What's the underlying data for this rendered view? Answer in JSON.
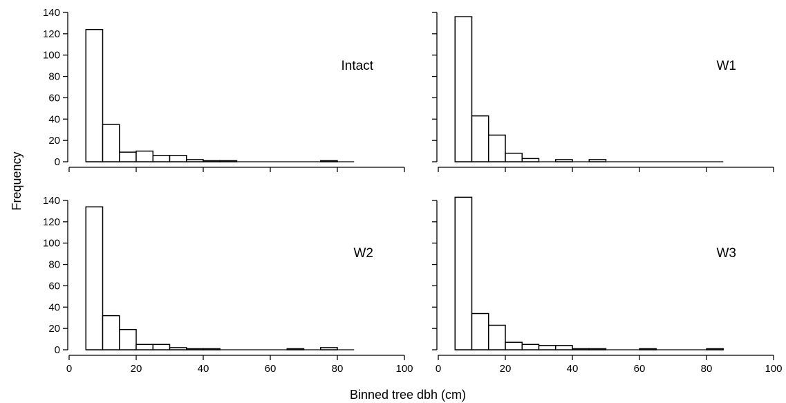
{
  "figure": {
    "ylabel": "Frequency",
    "xlabel": "Binned tree dbh (cm)"
  },
  "chart_data": [
    {
      "type": "bar",
      "panel_label": "Intact",
      "bin_width": 5,
      "bin_starts": [
        5,
        10,
        15,
        20,
        25,
        30,
        35,
        40,
        45,
        50,
        55,
        60,
        65,
        70,
        75,
        80
      ],
      "values": [
        124,
        35,
        9,
        10,
        6,
        6,
        2,
        1,
        1,
        0,
        0,
        0,
        0,
        0,
        1,
        0
      ],
      "xlim": [
        0,
        100
      ],
      "ylim": [
        0,
        140
      ],
      "xticks": [
        0,
        20,
        40,
        60,
        80,
        100
      ],
      "xtick_labels": [],
      "yticks": [
        0,
        20,
        40,
        60,
        80,
        100,
        120,
        140
      ],
      "ytick_labels": [
        "0",
        "20",
        "40",
        "60",
        "80",
        "100",
        "120",
        "140"
      ]
    },
    {
      "type": "bar",
      "panel_label": "W1",
      "bin_width": 5,
      "bin_starts": [
        5,
        10,
        15,
        20,
        25,
        30,
        35,
        40,
        45,
        50,
        55,
        60,
        65,
        70,
        75,
        80
      ],
      "values": [
        136,
        43,
        25,
        8,
        3,
        0,
        2,
        0,
        2,
        0,
        0,
        0,
        0,
        0,
        0,
        0
      ],
      "xlim": [
        0,
        100
      ],
      "ylim": [
        0,
        140
      ],
      "xticks": [
        0,
        20,
        40,
        60,
        80,
        100
      ],
      "xtick_labels": [],
      "yticks": [
        0,
        20,
        40,
        60,
        80,
        100,
        120,
        140
      ],
      "ytick_labels": []
    },
    {
      "type": "bar",
      "panel_label": "W2",
      "bin_width": 5,
      "bin_starts": [
        5,
        10,
        15,
        20,
        25,
        30,
        35,
        40,
        45,
        50,
        55,
        60,
        65,
        70,
        75,
        80
      ],
      "values": [
        134,
        32,
        19,
        5,
        5,
        2,
        1,
        1,
        0,
        0,
        0,
        0,
        1,
        0,
        2,
        0
      ],
      "xlim": [
        0,
        100
      ],
      "ylim": [
        0,
        140
      ],
      "xticks": [
        0,
        20,
        40,
        60,
        80,
        100
      ],
      "xtick_labels": [
        "0",
        "20",
        "40",
        "60",
        "80",
        "100"
      ],
      "yticks": [
        0,
        20,
        40,
        60,
        80,
        100,
        120,
        140
      ],
      "ytick_labels": [
        "0",
        "20",
        "40",
        "60",
        "80",
        "100",
        "120",
        "140"
      ]
    },
    {
      "type": "bar",
      "panel_label": "W3",
      "bin_width": 5,
      "bin_starts": [
        5,
        10,
        15,
        20,
        25,
        30,
        35,
        40,
        45,
        50,
        55,
        60,
        65,
        70,
        75,
        80
      ],
      "values": [
        143,
        34,
        23,
        7,
        5,
        4,
        4,
        1,
        1,
        0,
        0,
        1,
        0,
        0,
        0,
        1
      ],
      "xlim": [
        0,
        100
      ],
      "ylim": [
        0,
        140
      ],
      "xticks": [
        0,
        20,
        40,
        60,
        80,
        100
      ],
      "xtick_labels": [
        "0",
        "20",
        "40",
        "60",
        "80",
        "100"
      ],
      "yticks": [
        0,
        20,
        40,
        60,
        80,
        100,
        120,
        140
      ],
      "ytick_labels": []
    }
  ]
}
